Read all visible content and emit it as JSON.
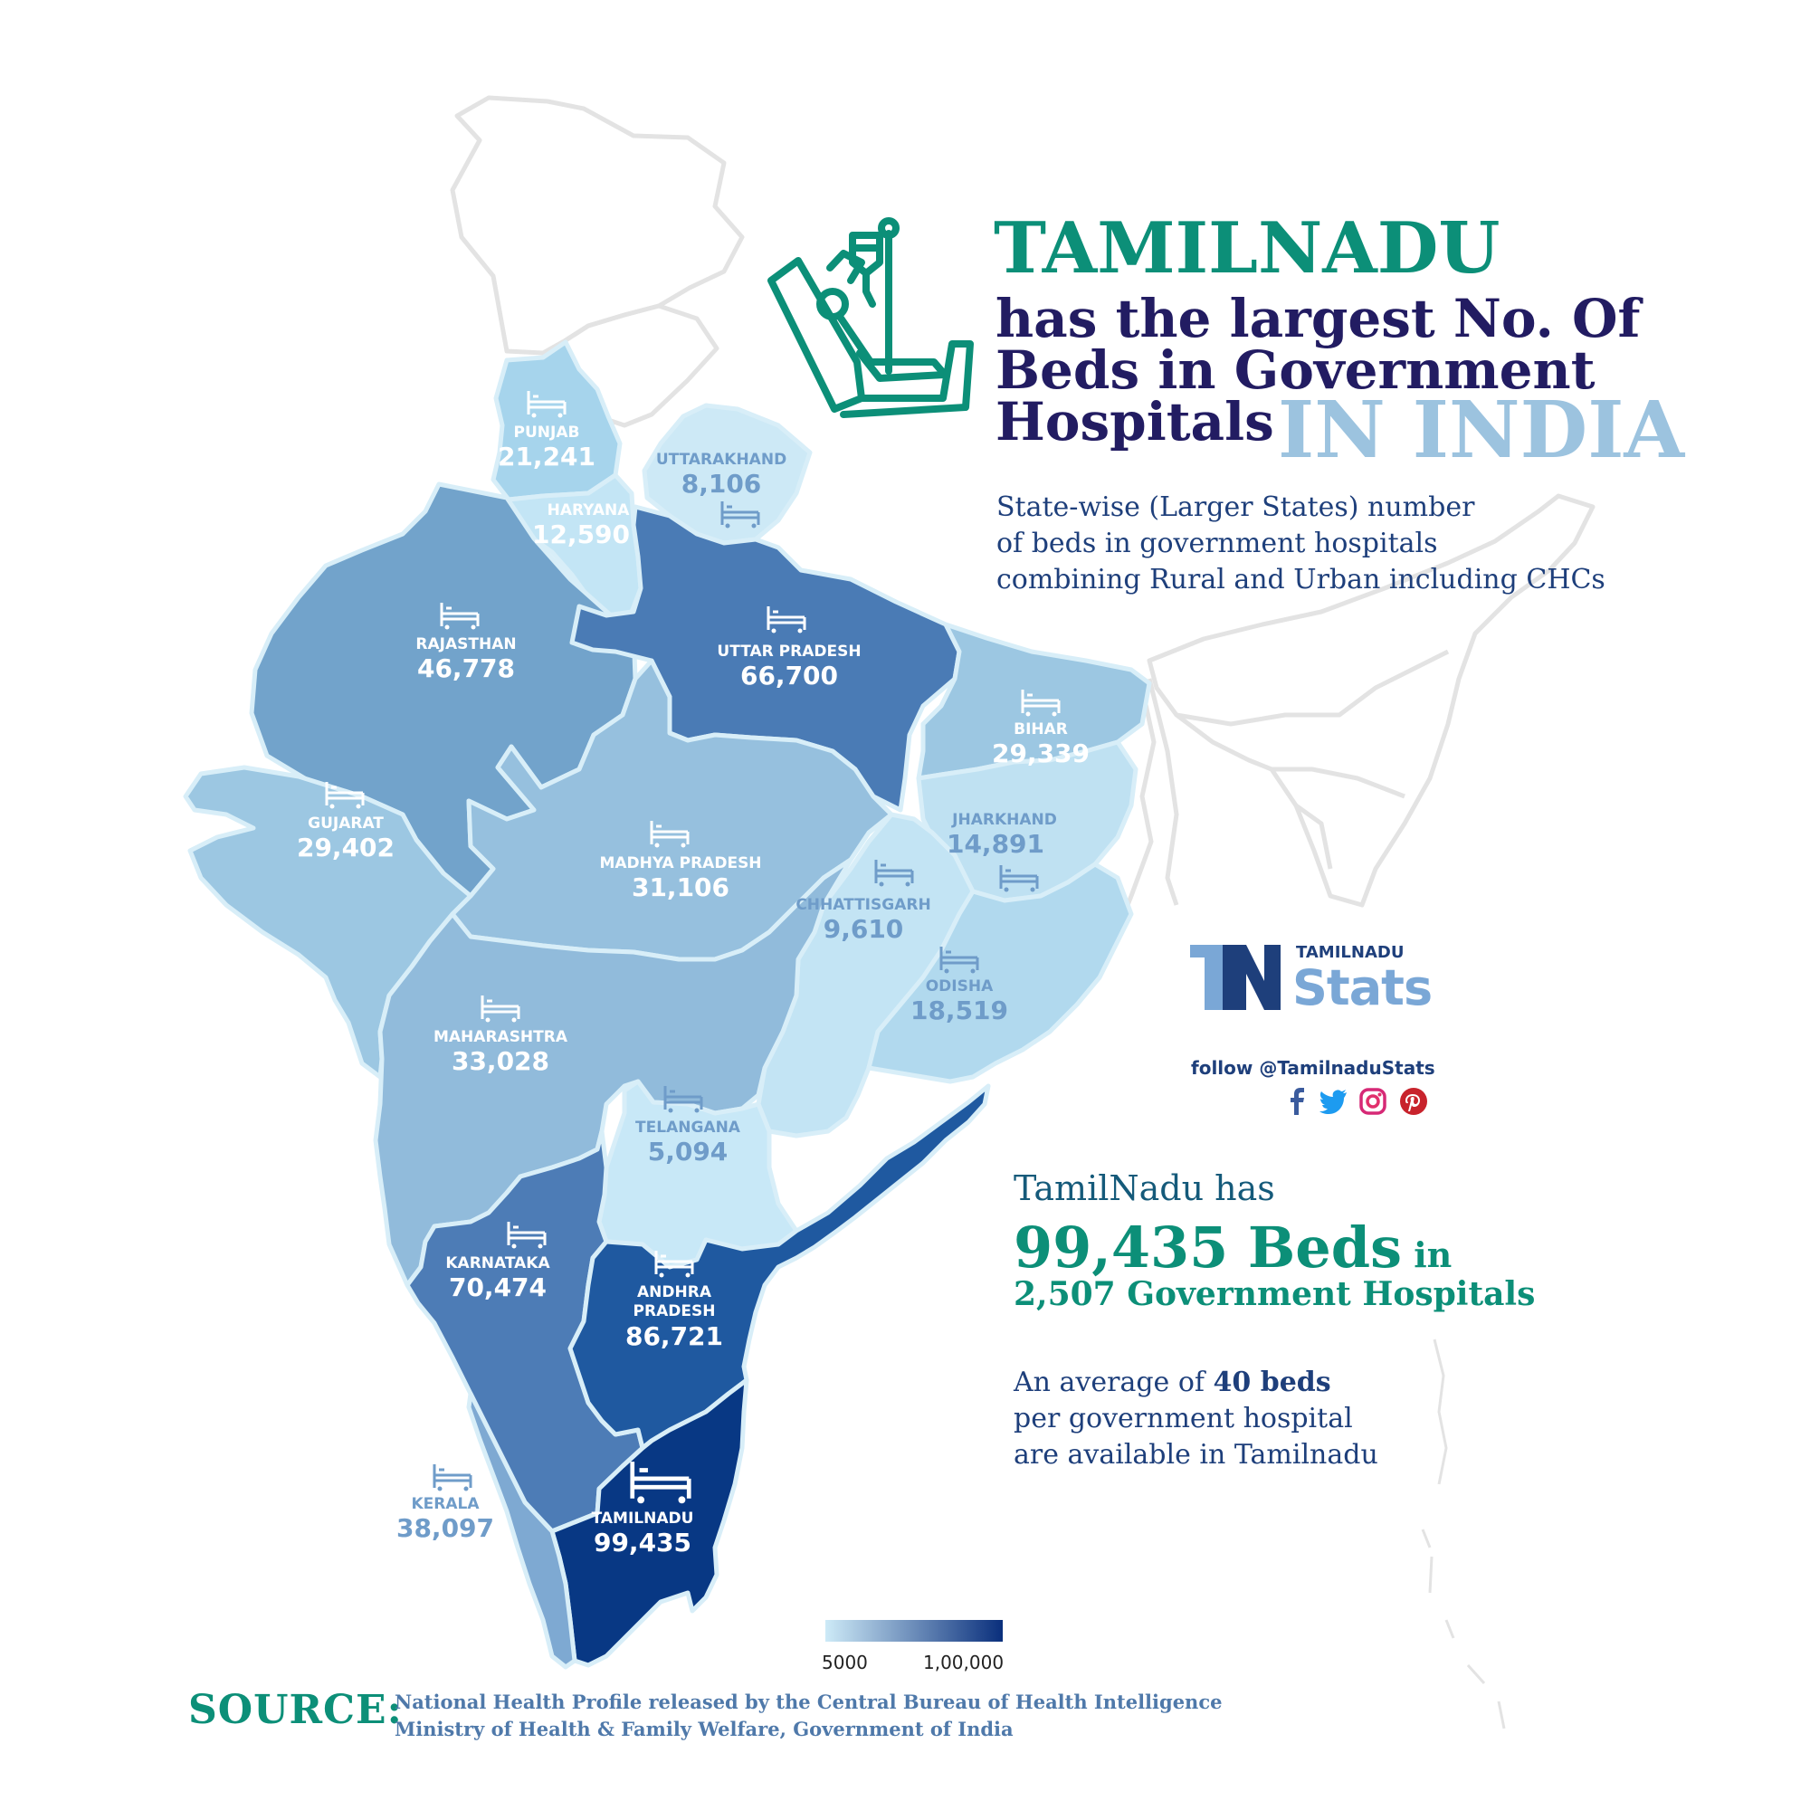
{
  "title": {
    "line1": "TAMILNADU",
    "line2": "has the largest No. Of",
    "line3": "Beds in Government",
    "line4": "Hospitals",
    "line5": "IN INDIA"
  },
  "subtitle": [
    "State-wise (Larger States) number",
    "of beds in government hospitals",
    "combining Rural and Urban including CHCs"
  ],
  "states": {
    "punjab": {
      "name": "PUNJAB",
      "value": "21,241",
      "beds": 21241
    },
    "haryana": {
      "name": "HARYANA",
      "value": "12,590",
      "beds": 12590
    },
    "uttarakhand": {
      "name": "UTTARAKHAND",
      "value": "8,106",
      "beds": 8106
    },
    "rajasthan": {
      "name": "RAJASTHAN",
      "value": "46,778",
      "beds": 46778
    },
    "uttar_pradesh": {
      "name": "UTTAR PRADESH",
      "value": "66,700",
      "beds": 66700
    },
    "bihar": {
      "name": "BIHAR",
      "value": "29,339",
      "beds": 29339
    },
    "gujarat": {
      "name": "GUJARAT",
      "value": "29,402",
      "beds": 29402
    },
    "madhya_pradesh": {
      "name": "MADHYA PRADESH",
      "value": "31,106",
      "beds": 31106
    },
    "jharkhand": {
      "name": "JHARKHAND",
      "value": "14,891",
      "beds": 14891
    },
    "chhattisgarh": {
      "name": "CHHATTISGARH",
      "value": "9,610",
      "beds": 9610
    },
    "odisha": {
      "name": "ODISHA",
      "value": "18,519",
      "beds": 18519
    },
    "maharashtra": {
      "name": "MAHARASHTRA",
      "value": "33,028",
      "beds": 33028
    },
    "telangana": {
      "name": "TELANGANA",
      "value": "5,094",
      "beds": 5094
    },
    "karnataka": {
      "name": "KARNATAKA",
      "value": "70,474",
      "beds": 70474
    },
    "andhra_pradesh": {
      "name": "ANDHRA\nPRADESH",
      "value": "86,721",
      "beds": 86721
    },
    "tamilnadu": {
      "name": "TAMILNADU",
      "value": "99,435",
      "beds": 99435
    },
    "kerala": {
      "name": "KERALA",
      "value": "38,097",
      "beds": 38097
    }
  },
  "brand": {
    "top": "TAMILNADU",
    "bottom": "Stats",
    "follow": "follow @TamilnaduStats"
  },
  "social_icons": [
    "facebook-icon",
    "twitter-icon",
    "instagram-icon",
    "pinterest-icon"
  ],
  "stats": {
    "line1": "TamilNadu has",
    "beds": "99,435 Beds",
    "in": " in",
    "hospitals": "2,507 Government Hospitals"
  },
  "average": {
    "prefix": "An average of ",
    "value": "40 beds",
    "line2": "per government hospital",
    "line3": "are available in Tamilnadu"
  },
  "legend": {
    "min_label": "5000",
    "max_label": "1,00,000",
    "min": 5000,
    "max": 100000,
    "color_low": "#cdeaf7",
    "color_high": "#0a2f7c"
  },
  "source": {
    "label": "SOURCE:",
    "line1": "National Health Profile released by the Central Bureau of Health Intelligence",
    "line2": "Ministry of Health & Family Welfare, Government of India"
  },
  "colors": {
    "accent_green": "#0c8f78",
    "title_navy": "#221c62",
    "title_light": "#9cc3df",
    "body_blue": "#1e3f7b"
  }
}
